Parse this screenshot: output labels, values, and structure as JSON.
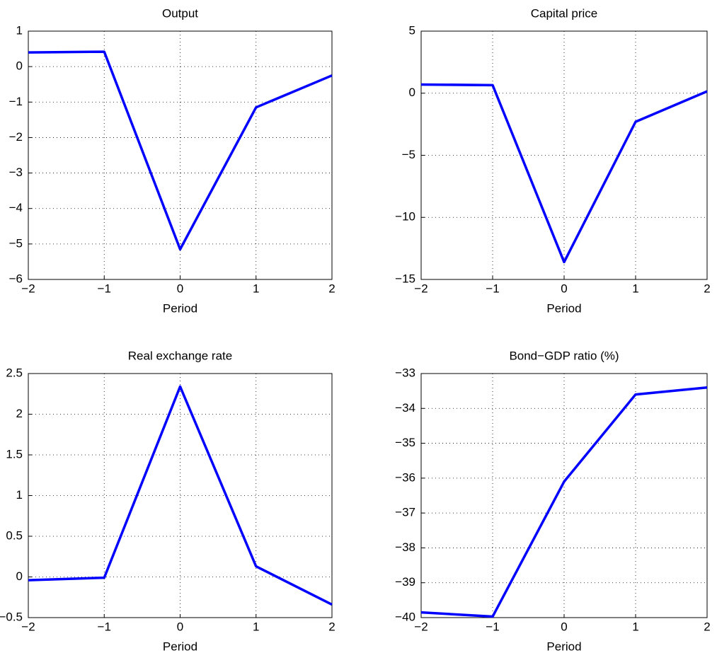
{
  "chart_data": [
    {
      "type": "line",
      "title": "Output",
      "x_label": "Period",
      "x": [
        {
          "value": -2,
          "label": "−2"
        },
        {
          "value": -1,
          "label": "−1"
        },
        0,
        1,
        2
      ],
      "series": [
        {
          "color": "#0000ff",
          "values": [
            0.4,
            0.42,
            -5.15,
            -1.15,
            -0.25
          ]
        }
      ],
      "xlim": [
        {
          "value": -2,
          "label": "−2"
        },
        2
      ],
      "ylim": [
        {
          "value": -6,
          "label": "−6"
        },
        1
      ],
      "xticks": [
        {
          "value": -2,
          "label": "−2"
        },
        {
          "value": -1,
          "label": "−1"
        },
        0,
        1,
        2
      ],
      "yticks": [
        {
          "value": -6,
          "label": "−6"
        },
        {
          "value": -5,
          "label": "−5"
        },
        {
          "value": -4,
          "label": "−4"
        },
        {
          "value": -3,
          "label": "−3"
        },
        {
          "value": -2,
          "label": "−2"
        },
        {
          "value": -1,
          "label": "−1"
        },
        0,
        1
      ],
      "grid": true
    },
    {
      "type": "line",
      "title": "Capital price",
      "x_label": "Period",
      "x": [
        {
          "value": -2,
          "label": "−2"
        },
        {
          "value": -1,
          "label": "−1"
        },
        0,
        1,
        2
      ],
      "series": [
        {
          "color": "#0000ff",
          "values": [
            0.7,
            0.65,
            -13.6,
            -2.3,
            0.15
          ]
        }
      ],
      "xlim": [
        {
          "value": -2,
          "label": "−2"
        },
        2
      ],
      "ylim": [
        {
          "value": -15,
          "label": "−15"
        },
        5
      ],
      "xticks": [
        {
          "value": -2,
          "label": "−2"
        },
        {
          "value": -1,
          "label": "−1"
        },
        0,
        1,
        2
      ],
      "yticks": [
        {
          "value": -15,
          "label": "−15"
        },
        {
          "value": -10,
          "label": "−10"
        },
        {
          "value": -5,
          "label": "−5"
        },
        0,
        5
      ],
      "grid": true
    },
    {
      "type": "line",
      "title": "Real exchange rate",
      "x_label": "Period",
      "x": [
        {
          "value": -2,
          "label": "−2"
        },
        {
          "value": -1,
          "label": "−1"
        },
        0,
        1,
        2
      ],
      "series": [
        {
          "color": "#0000ff",
          "values": [
            -0.04,
            -0.01,
            2.34,
            0.13,
            -0.34
          ]
        }
      ],
      "xlim": [
        {
          "value": -2,
          "label": "−2"
        },
        2
      ],
      "ylim": [
        {
          "value": -0.5,
          "label": "−0.5"
        },
        2.5
      ],
      "xticks": [
        {
          "value": -2,
          "label": "−2"
        },
        {
          "value": -1,
          "label": "−1"
        },
        0,
        1,
        2
      ],
      "yticks": [
        {
          "value": -0.5,
          "label": "−0.5"
        },
        0,
        0.5,
        1,
        1.5,
        2,
        2.5
      ],
      "grid": true
    },
    {
      "type": "line",
      "title": "Bond−GDP ratio (%)",
      "x_label": "Period",
      "x": [
        {
          "value": -2,
          "label": "−2"
        },
        {
          "value": -1,
          "label": "−1"
        },
        0,
        1,
        2
      ],
      "series": [
        {
          "color": "#0000ff",
          "values": [
            -39.85,
            -39.97,
            -36.1,
            -33.6,
            -33.4
          ]
        }
      ],
      "xlim": [
        {
          "value": -2,
          "label": "−2"
        },
        2
      ],
      "ylim": [
        {
          "value": -40,
          "label": "−40"
        },
        {
          "value": -33,
          "label": "−33"
        }
      ],
      "xticks": [
        {
          "value": -2,
          "label": "−2"
        },
        {
          "value": -1,
          "label": "−1"
        },
        0,
        1,
        2
      ],
      "yticks": [
        {
          "value": -40,
          "label": "−40"
        },
        {
          "value": -39,
          "label": "−39"
        },
        {
          "value": -38,
          "label": "−38"
        },
        {
          "value": -37,
          "label": "−37"
        },
        {
          "value": -36,
          "label": "−36"
        },
        {
          "value": -35,
          "label": "−35"
        },
        {
          "value": -34,
          "label": "−34"
        },
        {
          "value": -33,
          "label": "−33"
        }
      ],
      "grid": true
    }
  ]
}
